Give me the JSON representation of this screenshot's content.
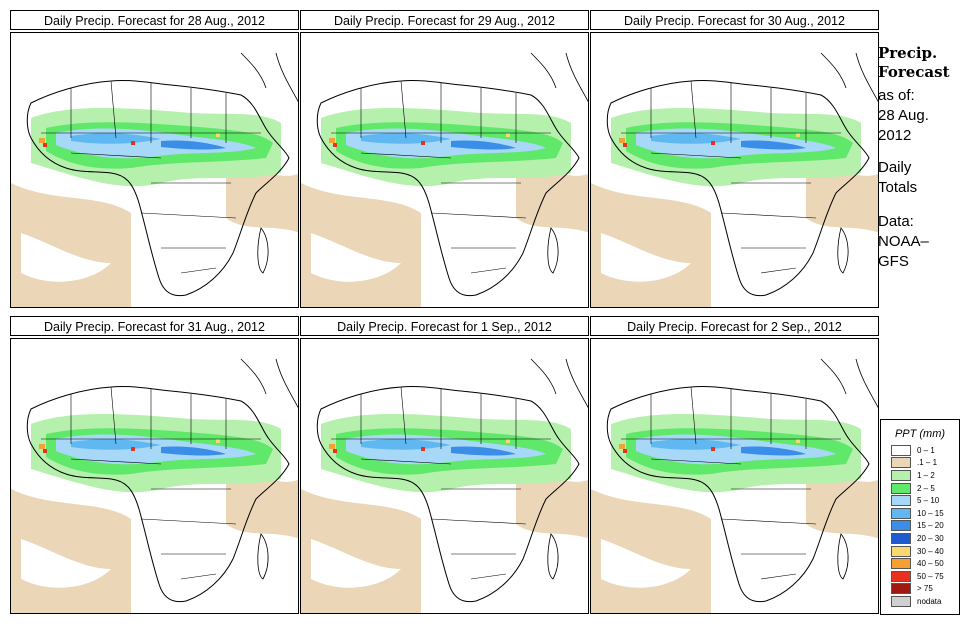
{
  "panels": [
    {
      "title": "Daily Precip. Forecast for  28 Aug., 2012"
    },
    {
      "title": "Daily Precip. Forecast for  29 Aug., 2012"
    },
    {
      "title": "Daily Precip. Forecast for  30 Aug., 2012"
    },
    {
      "title": "Daily Precip. Forecast for  31 Aug., 2012"
    },
    {
      "title": "Daily Precip. Forecast for  1 Sep., 2012"
    },
    {
      "title": "Daily Precip. Forecast for  2 Sep., 2012"
    }
  ],
  "sidebar": {
    "title_line1": "Precip.",
    "title_line2": "Forecast",
    "asof_label": "as of:",
    "date_line1": "28 Aug.",
    "date_line2": "2012",
    "totals_line1": "Daily",
    "totals_line2": "Totals",
    "data_line1": "Data:",
    "data_line2": "NOAA–",
    "data_line3": "GFS"
  },
  "legend": {
    "title": "PPT (mm)",
    "items": [
      {
        "label": "0 – 1",
        "color": "#ffffff"
      },
      {
        "label": ".1 – 1",
        "color": "#ebd6b8"
      },
      {
        "label": "1 – 2",
        "color": "#b5f0ac"
      },
      {
        "label": "2 – 5",
        "color": "#60e86a"
      },
      {
        "label": "5 – 10",
        "color": "#a8d8f8"
      },
      {
        "label": "10 – 15",
        "color": "#60b8f2"
      },
      {
        "label": "15 – 20",
        "color": "#3a8ee8"
      },
      {
        "label": "20 – 30",
        "color": "#1e5ad0"
      },
      {
        "label": "30 – 40",
        "color": "#f8d870"
      },
      {
        "label": "40 – 50",
        "color": "#f5a030"
      },
      {
        "label": "50 – 75",
        "color": "#e83020"
      },
      {
        "label": "> 75",
        "color": "#a01810"
      },
      {
        "label": "nodata",
        "color": "#d0d0d0"
      }
    ]
  }
}
